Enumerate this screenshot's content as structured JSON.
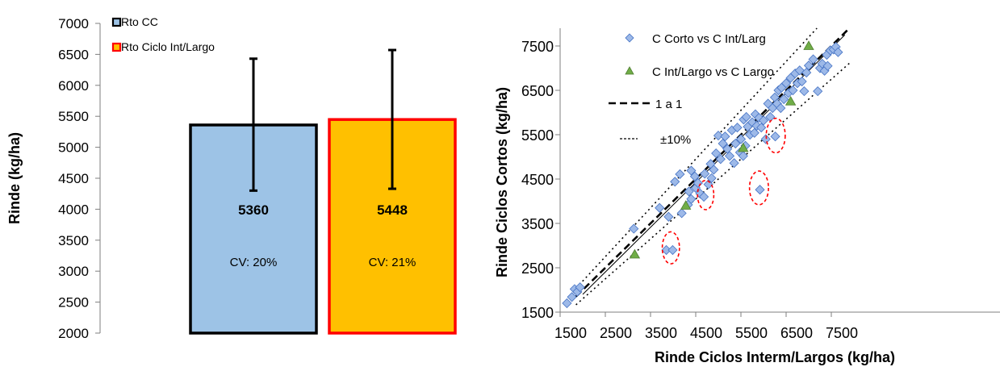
{
  "chart_data": [
    {
      "type": "bar",
      "ylabel": "Rinde (kg/ha)",
      "ylim": [
        2000,
        7000
      ],
      "yticks": [
        2000,
        2500,
        3000,
        3500,
        4000,
        4500,
        5000,
        5500,
        6000,
        6500,
        7000
      ],
      "grid": false,
      "legend_position": "top-left",
      "series": [
        {
          "name": "Rto CC",
          "value": 5360,
          "value_label": "5360",
          "cv_label": "CV: 20%",
          "error_low": 4300,
          "error_high": 6430,
          "fill": "#9DC3E6",
          "stroke": "#000000"
        },
        {
          "name": "Rto Ciclo Int/Largo",
          "value": 5448,
          "value_label": "5448",
          "cv_label": "CV: 21%",
          "error_low": 4330,
          "error_high": 6570,
          "fill": "#FFC000",
          "stroke": "#FF0000"
        }
      ]
    },
    {
      "type": "scatter",
      "xlabel": "Rinde Ciclos Interm/Largos (kg/ha)",
      "ylabel": "Rinde Ciclos Cortos (kg/ha)",
      "xlim": [
        1500,
        7900
      ],
      "ylim": [
        1500,
        7900
      ],
      "xticks": [
        1500,
        2500,
        3500,
        4500,
        5500,
        6500,
        7500
      ],
      "yticks": [
        1500,
        2500,
        3500,
        4500,
        5500,
        6500,
        7500
      ],
      "grid": false,
      "legend_position": "top-left",
      "colors": {
        "diamond_fill": "#9DB9E8",
        "diamond_stroke": "#4472C4",
        "triangle_fill": "#70AD47",
        "triangle_stroke": "#507E32",
        "circle": "#FF0000"
      },
      "legend": [
        {
          "label": "C Corto vs C Int/Larg",
          "marker": "diamond"
        },
        {
          "label": "C Int/Largo vs C Largo",
          "marker": "triangle"
        },
        {
          "label": "1 a 1",
          "marker": "dashed-line"
        },
        {
          "label": "±10%",
          "marker": "dotted-line"
        }
      ],
      "series": [
        {
          "name": "C Corto vs C Int/Larg",
          "marker": "diamond",
          "points": [
            [
              1650,
              1700
            ],
            [
              1760,
              1840
            ],
            [
              1820,
              2020
            ],
            [
              1880,
              1960
            ],
            [
              1940,
              2060
            ],
            [
              3130,
              3380
            ],
            [
              3850,
              2900
            ],
            [
              3990,
              2900
            ],
            [
              3700,
              3850
            ],
            [
              3900,
              3650
            ],
            [
              4040,
              4440
            ],
            [
              4150,
              4610
            ],
            [
              4190,
              3730
            ],
            [
              4330,
              3920
            ],
            [
              4400,
              4050
            ],
            [
              4350,
              4220
            ],
            [
              4400,
              4690
            ],
            [
              4480,
              4560
            ],
            [
              4500,
              4300
            ],
            [
              4550,
              4410
            ],
            [
              4600,
              4170
            ],
            [
              4700,
              4620
            ],
            [
              4680,
              4100
            ],
            [
              4780,
              4380
            ],
            [
              4830,
              4840
            ],
            [
              4850,
              4520
            ],
            [
              4900,
              4710
            ],
            [
              4950,
              5080
            ],
            [
              5000,
              5480
            ],
            [
              5050,
              4950
            ],
            [
              5100,
              5300
            ],
            [
              5150,
              5460
            ],
            [
              5200,
              5180
            ],
            [
              5250,
              5020
            ],
            [
              5300,
              5600
            ],
            [
              5350,
              4860
            ],
            [
              5380,
              5300
            ],
            [
              5420,
              5660
            ],
            [
              5480,
              5100
            ],
            [
              5500,
              5400
            ],
            [
              5550,
              5020
            ],
            [
              5560,
              5840
            ],
            [
              5600,
              5250
            ],
            [
              5620,
              5900
            ],
            [
              5650,
              5680
            ],
            [
              5700,
              5500
            ],
            [
              5750,
              5780
            ],
            [
              5800,
              5540
            ],
            [
              5820,
              5960
            ],
            [
              5850,
              5700
            ],
            [
              5900,
              5880
            ],
            [
              5920,
              4260
            ],
            [
              5950,
              5660
            ],
            [
              6000,
              5820
            ],
            [
              6050,
              5400
            ],
            [
              6100,
              6200
            ],
            [
              6150,
              5900
            ],
            [
              6200,
              6100
            ],
            [
              6250,
              6340
            ],
            [
              6260,
              5460
            ],
            [
              6300,
              6200
            ],
            [
              6330,
              6500
            ],
            [
              6380,
              6100
            ],
            [
              6400,
              6560
            ],
            [
              6450,
              6300
            ],
            [
              6500,
              6660
            ],
            [
              6550,
              6440
            ],
            [
              6600,
              6780
            ],
            [
              6650,
              6500
            ],
            [
              6700,
              6880
            ],
            [
              6750,
              6660
            ],
            [
              6800,
              6950
            ],
            [
              6850,
              6700
            ],
            [
              6900,
              6480
            ],
            [
              6950,
              6900
            ],
            [
              7000,
              7060
            ],
            [
              7100,
              7200
            ],
            [
              7200,
              6480
            ],
            [
              7250,
              7000
            ],
            [
              7300,
              7100
            ],
            [
              7350,
              6940
            ],
            [
              7400,
              7300
            ],
            [
              7420,
              7050
            ],
            [
              7480,
              7400
            ],
            [
              7550,
              7420
            ],
            [
              7600,
              7480
            ],
            [
              7650,
              7360
            ]
          ]
        },
        {
          "name": "C Int/Largo vs C Largo",
          "marker": "triangle",
          "points": [
            [
              3150,
              2800
            ],
            [
              4280,
              3900
            ],
            [
              5550,
              5200
            ],
            [
              6600,
              6250
            ],
            [
              7000,
              7500
            ]
          ]
        }
      ],
      "reference_lines": [
        {
          "name": "1 a 1",
          "slope": 1.0,
          "style": "dashed"
        },
        {
          "name": "+10%",
          "slope": 1.1,
          "style": "dotted"
        },
        {
          "name": "-10%",
          "slope": 0.9,
          "style": "dotted"
        }
      ],
      "annotations": [
        {
          "type": "circle",
          "cx": 3950,
          "cy": 2950,
          "rx": 190,
          "ry": 360
        },
        {
          "type": "circle",
          "cx": 4720,
          "cy": 4140,
          "rx": 180,
          "ry": 330
        },
        {
          "type": "circle",
          "cx": 5900,
          "cy": 4300,
          "rx": 210,
          "ry": 380
        },
        {
          "type": "circle",
          "cx": 6270,
          "cy": 5480,
          "rx": 210,
          "ry": 390
        }
      ]
    }
  ]
}
